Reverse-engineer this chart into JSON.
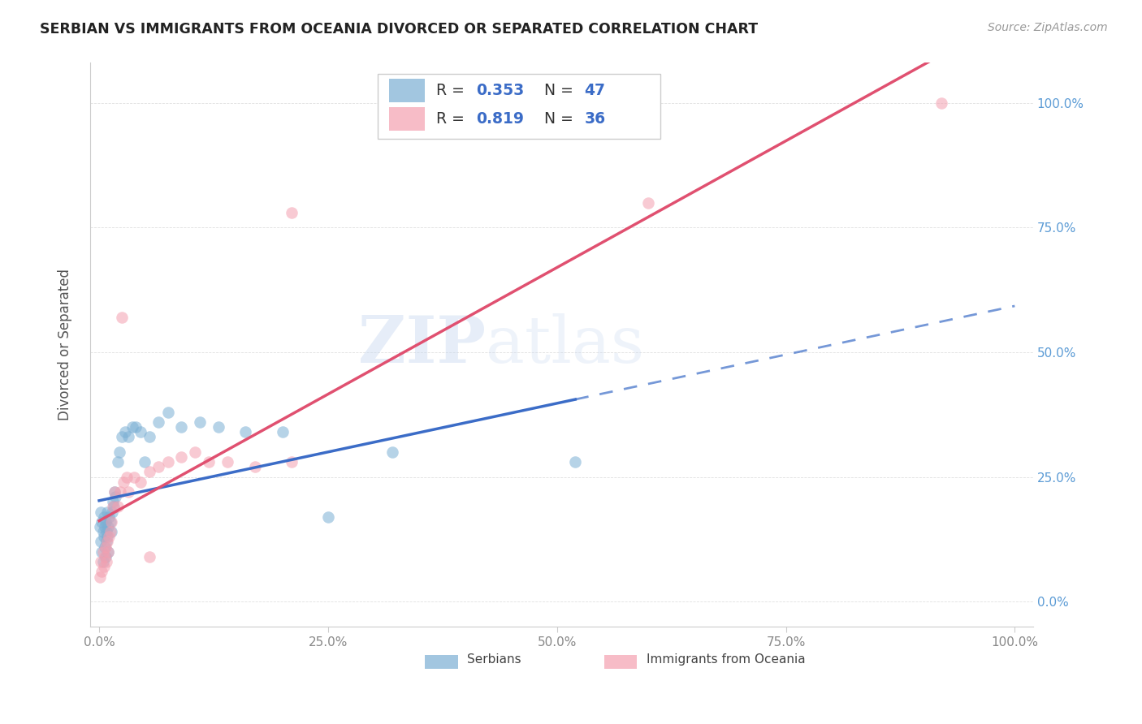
{
  "title": "SERBIAN VS IMMIGRANTS FROM OCEANIA DIVORCED OR SEPARATED CORRELATION CHART",
  "source": "Source: ZipAtlas.com",
  "ylabel": "Divorced or Separated",
  "blue_color": "#7BAFD4",
  "pink_color": "#F4A0B0",
  "line_blue": "#3B6CC7",
  "line_pink": "#E05070",
  "watermark_color": "#C8D8F0",
  "bg_color": "#FFFFFF",
  "grid_color": "#E0E0E0",
  "serbians_x": [
    0.001,
    0.002,
    0.002,
    0.003,
    0.003,
    0.004,
    0.004,
    0.005,
    0.005,
    0.006,
    0.006,
    0.007,
    0.007,
    0.008,
    0.008,
    0.009,
    0.009,
    0.01,
    0.01,
    0.011,
    0.012,
    0.013,
    0.014,
    0.015,
    0.016,
    0.017,
    0.018,
    0.02,
    0.022,
    0.025,
    0.028,
    0.032,
    0.036,
    0.04,
    0.045,
    0.05,
    0.055,
    0.065,
    0.075,
    0.09,
    0.11,
    0.13,
    0.16,
    0.2,
    0.25,
    0.32,
    0.52
  ],
  "serbians_y": [
    0.15,
    0.12,
    0.18,
    0.1,
    0.16,
    0.08,
    0.14,
    0.13,
    0.17,
    0.11,
    0.15,
    0.09,
    0.16,
    0.14,
    0.12,
    0.18,
    0.13,
    0.15,
    0.1,
    0.17,
    0.16,
    0.14,
    0.18,
    0.2,
    0.19,
    0.22,
    0.21,
    0.28,
    0.3,
    0.33,
    0.34,
    0.33,
    0.35,
    0.35,
    0.34,
    0.28,
    0.33,
    0.36,
    0.38,
    0.35,
    0.36,
    0.35,
    0.34,
    0.34,
    0.17,
    0.3,
    0.28
  ],
  "oceania_x": [
    0.001,
    0.002,
    0.003,
    0.004,
    0.005,
    0.006,
    0.007,
    0.008,
    0.009,
    0.01,
    0.011,
    0.012,
    0.013,
    0.015,
    0.017,
    0.02,
    0.023,
    0.027,
    0.032,
    0.038,
    0.045,
    0.055,
    0.065,
    0.075,
    0.09,
    0.105,
    0.12,
    0.14,
    0.17,
    0.21,
    0.025,
    0.03,
    0.055,
    0.21,
    0.6,
    0.92
  ],
  "oceania_y": [
    0.05,
    0.08,
    0.06,
    0.1,
    0.07,
    0.09,
    0.11,
    0.08,
    0.12,
    0.1,
    0.13,
    0.14,
    0.16,
    0.19,
    0.22,
    0.19,
    0.22,
    0.24,
    0.22,
    0.25,
    0.24,
    0.26,
    0.27,
    0.28,
    0.29,
    0.3,
    0.28,
    0.28,
    0.27,
    0.28,
    0.57,
    0.25,
    0.09,
    0.78,
    0.8,
    1.0
  ],
  "xlim": [
    0.0,
    1.0
  ],
  "ylim": [
    0.0,
    1.05
  ],
  "xticks": [
    0.0,
    0.25,
    0.5,
    0.75,
    1.0
  ],
  "xticklabels": [
    "0.0%",
    "25.0%",
    "50.0%",
    "75.0%",
    "100.0%"
  ],
  "yticks": [
    0.0,
    0.25,
    0.5,
    0.75,
    1.0
  ],
  "yticklabels_right": [
    "0.0%",
    "25.0%",
    "50.0%",
    "75.0%",
    "100.0%"
  ]
}
